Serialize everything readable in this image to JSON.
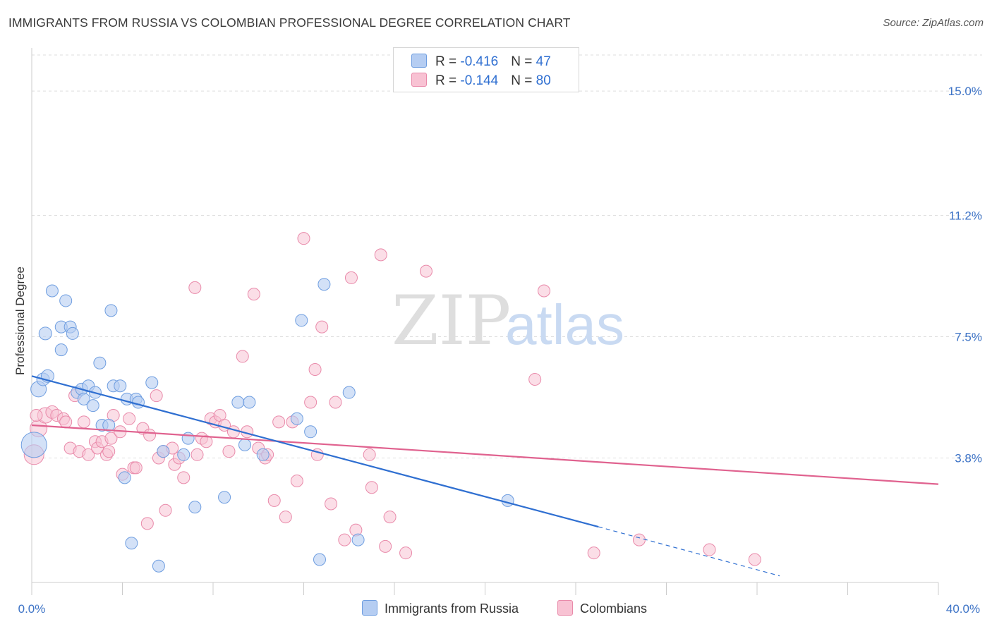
{
  "header": {
    "title": "IMMIGRANTS FROM RUSSIA VS COLOMBIAN PROFESSIONAL DEGREE CORRELATION CHART",
    "source": "Source: ZipAtlas.com"
  },
  "watermark": {
    "part1": "ZIP",
    "part2": "atlas"
  },
  "legend": {
    "rows": [
      {
        "r_label": "R = ",
        "r_value": "-0.416",
        "n_label": "N = ",
        "n_value": "47"
      },
      {
        "r_label": "R = ",
        "r_value": "-0.144",
        "n_label": "N = ",
        "n_value": "80"
      }
    ]
  },
  "bottom_legend": {
    "series1": "Immigrants from Russia",
    "series2": "Colombians"
  },
  "colors": {
    "blue_fill": "#b5cdf2",
    "blue_stroke": "#6f9ee0",
    "blue_line": "#2f6fd1",
    "pink_fill": "#f8c2d3",
    "pink_stroke": "#e98aaa",
    "pink_line": "#e0628f",
    "grid": "#dddddd",
    "tick_text": "#3d73c6"
  },
  "chart_data": {
    "type": "scatter",
    "title": "IMMIGRANTS FROM RUSSIA VS COLOMBIAN PROFESSIONAL DEGREE CORRELATION CHART",
    "xlabel": "",
    "ylabel": "Professional Degree",
    "xlim": [
      0,
      40
    ],
    "ylim": [
      0,
      16.1
    ],
    "x_tick_labels": [
      "0.0%",
      "40.0%"
    ],
    "y_ticks": [
      3.8,
      7.5,
      11.2,
      15.0
    ],
    "y_tick_labels": [
      "3.8%",
      "7.5%",
      "11.2%",
      "15.0%"
    ],
    "grid": true,
    "legend_placement": "top-center",
    "series": [
      {
        "name": "Immigrants from Russia",
        "r": -0.416,
        "n": 47,
        "trend": {
          "x0": 0,
          "y0": 6.3,
          "x1": 25.0,
          "y1": 1.7,
          "dash_to_x": 33.0,
          "dash_to_y": 0.2
        },
        "points": [
          [
            0.1,
            4.2,
            36
          ],
          [
            0.3,
            5.9,
            22
          ],
          [
            0.5,
            6.2,
            18
          ],
          [
            0.6,
            7.6,
            18
          ],
          [
            0.7,
            6.3,
            18
          ],
          [
            0.9,
            8.9,
            17
          ],
          [
            1.3,
            7.8,
            17
          ],
          [
            1.3,
            7.1,
            17
          ],
          [
            1.5,
            8.6,
            17
          ],
          [
            1.7,
            7.8,
            17
          ],
          [
            1.8,
            7.6,
            17
          ],
          [
            2.0,
            5.8,
            17
          ],
          [
            2.2,
            5.9,
            17
          ],
          [
            2.3,
            5.6,
            17
          ],
          [
            2.5,
            6.0,
            17
          ],
          [
            2.7,
            5.4,
            17
          ],
          [
            2.8,
            5.8,
            17
          ],
          [
            3.0,
            6.7,
            17
          ],
          [
            3.1,
            4.8,
            17
          ],
          [
            3.4,
            4.8,
            17
          ],
          [
            3.5,
            8.3,
            17
          ],
          [
            3.6,
            6.0,
            17
          ],
          [
            3.9,
            6.0,
            17
          ],
          [
            4.1,
            3.2,
            17
          ],
          [
            4.2,
            5.6,
            17
          ],
          [
            4.4,
            1.2,
            17
          ],
          [
            4.6,
            5.6,
            17
          ],
          [
            4.7,
            5.5,
            17
          ],
          [
            5.3,
            6.1,
            17
          ],
          [
            5.6,
            0.5,
            17
          ],
          [
            5.8,
            4.0,
            17
          ],
          [
            6.7,
            3.9,
            17
          ],
          [
            6.9,
            4.4,
            17
          ],
          [
            7.2,
            2.3,
            17
          ],
          [
            8.5,
            2.6,
            17
          ],
          [
            9.1,
            5.5,
            17
          ],
          [
            9.4,
            4.2,
            17
          ],
          [
            9.6,
            5.5,
            17
          ],
          [
            10.2,
            3.9,
            17
          ],
          [
            11.7,
            5.0,
            17
          ],
          [
            11.9,
            8.0,
            17
          ],
          [
            12.3,
            4.6,
            17
          ],
          [
            12.7,
            0.7,
            17
          ],
          [
            12.9,
            9.1,
            17
          ],
          [
            14.0,
            5.8,
            17
          ],
          [
            14.4,
            1.3,
            17
          ],
          [
            21.0,
            2.5,
            17
          ]
        ]
      },
      {
        "name": "Colombians",
        "r": -0.144,
        "n": 80,
        "trend": {
          "x0": 0,
          "y0": 4.8,
          "x1": 40,
          "y1": 3.0
        },
        "points": [
          [
            0.1,
            3.9,
            28
          ],
          [
            0.3,
            4.7,
            24
          ],
          [
            0.6,
            5.1,
            22
          ],
          [
            0.9,
            5.2,
            18
          ],
          [
            1.1,
            5.1,
            17
          ],
          [
            1.4,
            5.0,
            17
          ],
          [
            1.5,
            4.9,
            17
          ],
          [
            1.7,
            4.1,
            17
          ],
          [
            1.9,
            5.7,
            17
          ],
          [
            2.1,
            4.0,
            17
          ],
          [
            2.3,
            4.9,
            17
          ],
          [
            2.5,
            3.9,
            17
          ],
          [
            2.8,
            4.3,
            17
          ],
          [
            2.9,
            4.1,
            17
          ],
          [
            3.1,
            4.3,
            17
          ],
          [
            3.3,
            3.9,
            17
          ],
          [
            3.4,
            4.0,
            17
          ],
          [
            3.5,
            4.4,
            17
          ],
          [
            3.6,
            5.1,
            17
          ],
          [
            3.9,
            4.6,
            17
          ],
          [
            4.0,
            3.3,
            17
          ],
          [
            4.3,
            5.0,
            17
          ],
          [
            4.5,
            3.5,
            17
          ],
          [
            4.6,
            3.5,
            17
          ],
          [
            4.9,
            4.7,
            17
          ],
          [
            5.1,
            1.8,
            17
          ],
          [
            5.2,
            4.5,
            17
          ],
          [
            5.5,
            5.7,
            17
          ],
          [
            5.6,
            3.8,
            17
          ],
          [
            5.8,
            4.0,
            17
          ],
          [
            5.9,
            2.2,
            17
          ],
          [
            6.2,
            4.1,
            17
          ],
          [
            6.3,
            3.6,
            17
          ],
          [
            6.5,
            3.8,
            17
          ],
          [
            6.7,
            3.2,
            17
          ],
          [
            7.2,
            9.0,
            17
          ],
          [
            7.3,
            3.9,
            17
          ],
          [
            7.5,
            4.4,
            17
          ],
          [
            7.7,
            4.3,
            17
          ],
          [
            7.9,
            5.0,
            17
          ],
          [
            8.1,
            4.9,
            17
          ],
          [
            8.3,
            5.1,
            17
          ],
          [
            8.5,
            4.8,
            17
          ],
          [
            8.7,
            4.0,
            17
          ],
          [
            8.9,
            4.6,
            17
          ],
          [
            9.3,
            6.9,
            17
          ],
          [
            9.5,
            4.6,
            17
          ],
          [
            9.8,
            8.8,
            17
          ],
          [
            10.0,
            4.1,
            17
          ],
          [
            10.3,
            3.8,
            17
          ],
          [
            10.4,
            3.9,
            17
          ],
          [
            10.7,
            2.5,
            17
          ],
          [
            10.9,
            4.9,
            17
          ],
          [
            11.2,
            2.0,
            17
          ],
          [
            11.5,
            4.9,
            17
          ],
          [
            11.7,
            3.1,
            17
          ],
          [
            12.0,
            10.5,
            17
          ],
          [
            12.3,
            5.5,
            17
          ],
          [
            12.5,
            6.5,
            17
          ],
          [
            12.6,
            3.9,
            17
          ],
          [
            12.8,
            7.8,
            17
          ],
          [
            13.2,
            2.4,
            17
          ],
          [
            13.4,
            5.5,
            17
          ],
          [
            13.8,
            1.3,
            17
          ],
          [
            14.1,
            9.3,
            17
          ],
          [
            14.3,
            1.6,
            17
          ],
          [
            14.9,
            3.9,
            17
          ],
          [
            15.0,
            2.9,
            17
          ],
          [
            15.4,
            10.0,
            17
          ],
          [
            15.6,
            1.1,
            17
          ],
          [
            15.8,
            2.0,
            17
          ],
          [
            16.5,
            0.9,
            17
          ],
          [
            17.4,
            9.5,
            17
          ],
          [
            22.2,
            6.2,
            17
          ],
          [
            22.6,
            8.9,
            17
          ],
          [
            24.8,
            0.9,
            17
          ],
          [
            26.8,
            1.3,
            17
          ],
          [
            29.9,
            1.0,
            17
          ],
          [
            31.9,
            0.7,
            17
          ],
          [
            0.2,
            5.1,
            17
          ]
        ]
      }
    ]
  }
}
